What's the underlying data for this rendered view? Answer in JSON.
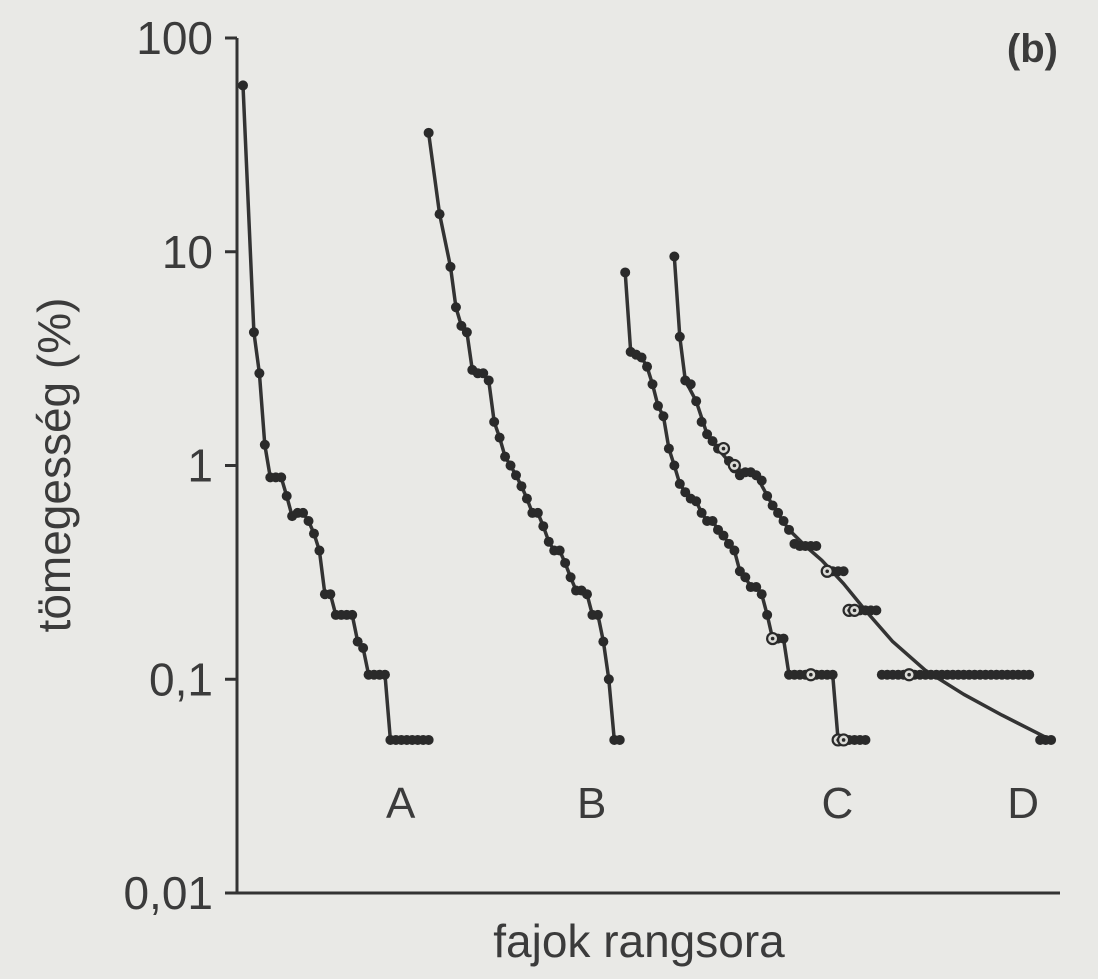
{
  "chart_data": {
    "type": "line",
    "panel_label": "(b)",
    "xlabel": "fajok rangsora",
    "ylabel": "tömegesség (%)",
    "yscale": "log",
    "ylim": [
      0.01,
      100
    ],
    "yticks": [
      {
        "value": 100,
        "label": "100"
      },
      {
        "value": 10,
        "label": "10"
      },
      {
        "value": 1,
        "label": "1"
      },
      {
        "value": 0.1,
        "label": "0,1"
      },
      {
        "value": 0.01,
        "label": "0,01"
      }
    ],
    "xlim": [
      0,
      140
    ],
    "series": [
      {
        "name": "A",
        "filled": [
          [
            1,
            60
          ],
          [
            3,
            4.2
          ],
          [
            4,
            2.7
          ],
          [
            5,
            1.25
          ],
          [
            6,
            0.88
          ],
          [
            7,
            0.88
          ],
          [
            8,
            0.88
          ],
          [
            9,
            0.72
          ],
          [
            10,
            0.58
          ],
          [
            11,
            0.6
          ],
          [
            12,
            0.6
          ],
          [
            13,
            0.55
          ],
          [
            14,
            0.48
          ],
          [
            15,
            0.4
          ],
          [
            16,
            0.25
          ],
          [
            17,
            0.25
          ],
          [
            18,
            0.2
          ],
          [
            19,
            0.2
          ],
          [
            20,
            0.2
          ],
          [
            21,
            0.2
          ],
          [
            22,
            0.15
          ],
          [
            23,
            0.14
          ],
          [
            24,
            0.105
          ],
          [
            25,
            0.105
          ],
          [
            26,
            0.105
          ],
          [
            27,
            0.105
          ],
          [
            28,
            0.052
          ],
          [
            29,
            0.052
          ],
          [
            30,
            0.052
          ],
          [
            31,
            0.052
          ],
          [
            32,
            0.052
          ],
          [
            33,
            0.052
          ],
          [
            34,
            0.052
          ],
          [
            35,
            0.052
          ]
        ],
        "open": []
      },
      {
        "name": "B",
        "filled": [
          [
            35,
            36
          ],
          [
            37,
            15
          ],
          [
            39,
            8.5
          ],
          [
            40,
            5.5
          ],
          [
            41,
            4.5
          ],
          [
            42,
            4.2
          ],
          [
            43,
            2.8
          ],
          [
            44,
            2.7
          ],
          [
            45,
            2.7
          ],
          [
            46,
            2.5
          ],
          [
            47,
            1.6
          ],
          [
            48,
            1.35
          ],
          [
            49,
            1.1
          ],
          [
            50,
            1.0
          ],
          [
            51,
            0.9
          ],
          [
            52,
            0.8
          ],
          [
            53,
            0.7
          ],
          [
            54,
            0.6
          ],
          [
            55,
            0.6
          ],
          [
            56,
            0.52
          ],
          [
            57,
            0.44
          ],
          [
            58,
            0.4
          ],
          [
            59,
            0.4
          ],
          [
            60,
            0.35
          ],
          [
            61,
            0.3
          ],
          [
            62,
            0.26
          ],
          [
            63,
            0.26
          ],
          [
            64,
            0.25
          ],
          [
            65,
            0.2
          ],
          [
            66,
            0.2
          ],
          [
            67,
            0.15
          ],
          [
            68,
            0.1
          ],
          [
            69,
            0.052
          ],
          [
            70,
            0.052
          ]
        ],
        "open": []
      },
      {
        "name": "C",
        "filled": [
          [
            71,
            8
          ],
          [
            72,
            3.4
          ],
          [
            73,
            3.3
          ],
          [
            74,
            3.2
          ],
          [
            75,
            2.9
          ],
          [
            76,
            2.4
          ],
          [
            77,
            1.9
          ],
          [
            78,
            1.7
          ],
          [
            79,
            1.2
          ],
          [
            80,
            1.0
          ],
          [
            81,
            0.82
          ],
          [
            82,
            0.75
          ],
          [
            83,
            0.7
          ],
          [
            84,
            0.68
          ],
          [
            85,
            0.6
          ],
          [
            86,
            0.55
          ],
          [
            87,
            0.55
          ],
          [
            88,
            0.5
          ],
          [
            89,
            0.47
          ],
          [
            90,
            0.43
          ],
          [
            91,
            0.4
          ],
          [
            92,
            0.32
          ],
          [
            93,
            0.3
          ],
          [
            94,
            0.27
          ],
          [
            95,
            0.27
          ],
          [
            96,
            0.25
          ],
          [
            97,
            0.2
          ],
          [
            99,
            0.155
          ],
          [
            100,
            0.155
          ],
          [
            101,
            0.105
          ],
          [
            102,
            0.105
          ],
          [
            103,
            0.105
          ],
          [
            104,
            0.105
          ],
          [
            106,
            0.105
          ],
          [
            107,
            0.105
          ],
          [
            108,
            0.105
          ],
          [
            109,
            0.105
          ],
          [
            112,
            0.052
          ],
          [
            113,
            0.052
          ],
          [
            114,
            0.052
          ],
          [
            115,
            0.052
          ]
        ],
        "open": [
          [
            98,
            0.155
          ],
          [
            105,
            0.105
          ],
          [
            110,
            0.052
          ],
          [
            111,
            0.052
          ]
        ]
      },
      {
        "name": "D",
        "filled": [
          [
            80,
            9.5
          ],
          [
            81,
            4
          ],
          [
            82,
            2.5
          ],
          [
            83,
            2.4
          ],
          [
            84,
            2.0
          ],
          [
            85,
            1.6
          ],
          [
            86,
            1.4
          ],
          [
            87,
            1.3
          ],
          [
            88,
            1.2
          ],
          [
            90,
            1.05
          ],
          [
            91,
            0.97
          ],
          [
            92,
            0.9
          ],
          [
            93,
            0.93
          ],
          [
            94,
            0.93
          ],
          [
            95,
            0.9
          ],
          [
            96,
            0.85
          ],
          [
            97,
            0.72
          ],
          [
            98,
            0.65
          ],
          [
            99,
            0.6
          ],
          [
            100,
            0.55
          ],
          [
            101,
            0.5
          ],
          [
            102,
            0.43
          ],
          [
            103,
            0.42
          ],
          [
            104,
            0.42
          ],
          [
            105,
            0.42
          ],
          [
            106,
            0.42
          ],
          [
            109,
            0.32
          ],
          [
            110,
            0.32
          ],
          [
            111,
            0.32
          ],
          [
            114,
            0.21
          ],
          [
            115,
            0.21
          ],
          [
            116,
            0.21
          ],
          [
            117,
            0.21
          ],
          [
            118,
            0.105
          ],
          [
            119,
            0.105
          ],
          [
            120,
            0.105
          ],
          [
            121,
            0.105
          ],
          [
            122,
            0.105
          ],
          [
            124,
            0.105
          ],
          [
            125,
            0.105
          ],
          [
            126,
            0.105
          ],
          [
            127,
            0.105
          ],
          [
            128,
            0.105
          ],
          [
            129,
            0.105
          ],
          [
            130,
            0.105
          ],
          [
            131,
            0.105
          ],
          [
            132,
            0.105
          ],
          [
            133,
            0.105
          ],
          [
            134,
            0.105
          ],
          [
            135,
            0.105
          ],
          [
            136,
            0.105
          ],
          [
            137,
            0.105
          ],
          [
            138,
            0.105
          ],
          [
            139,
            0.105
          ],
          [
            140,
            0.105
          ],
          [
            141,
            0.105
          ],
          [
            142,
            0.105
          ],
          [
            143,
            0.105
          ],
          [
            144,
            0.105
          ],
          [
            145,
            0.105
          ],
          [
            147,
            0.052
          ],
          [
            148,
            0.052
          ],
          [
            149,
            0.052
          ]
        ],
        "open": [
          [
            89,
            1.2
          ],
          [
            91,
            1.0
          ],
          [
            108,
            0.32
          ],
          [
            112,
            0.21
          ],
          [
            113,
            0.21
          ],
          [
            123,
            0.105
          ]
        ],
        "curve": [
          [
            80,
            9.5
          ],
          [
            81,
            4
          ],
          [
            82,
            2.5
          ],
          [
            84,
            2.0
          ],
          [
            86,
            1.4
          ],
          [
            88,
            1.2
          ],
          [
            91,
            0.97
          ],
          [
            95,
            0.9
          ],
          [
            98,
            0.65
          ],
          [
            101,
            0.5
          ],
          [
            104,
            0.42
          ],
          [
            107,
            0.36
          ],
          [
            111,
            0.28
          ],
          [
            115,
            0.21
          ],
          [
            120,
            0.15
          ],
          [
            126,
            0.11
          ],
          [
            133,
            0.085
          ],
          [
            140,
            0.068
          ],
          [
            149,
            0.052
          ]
        ]
      }
    ]
  }
}
